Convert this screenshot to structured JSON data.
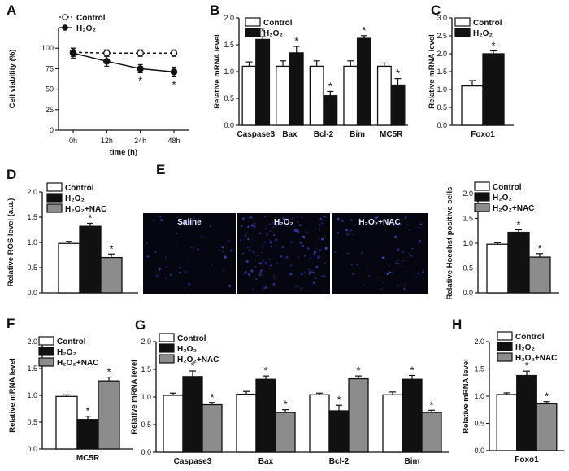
{
  "figure_title": "",
  "chart_data": [
    {
      "panel": "A",
      "type": "line",
      "xlabel": "time (h)",
      "ylabel": "Cell viability (%)",
      "categories": [
        "0h",
        "12h",
        "24h",
        "48h"
      ],
      "ylim": [
        0,
        125
      ],
      "yticks": [
        0,
        25,
        50,
        75,
        100
      ],
      "legend": "top-left",
      "series": [
        {
          "name": "Control",
          "values": [
            95,
            94,
            94,
            94
          ],
          "errors": [
            5,
            4,
            4,
            4
          ],
          "marker": "open-circle",
          "dash": true
        },
        {
          "name": "H₂O₂",
          "values": [
            94,
            84,
            75,
            71
          ],
          "errors": [
            6,
            6,
            5,
            6
          ],
          "marker": "filled-circle",
          "dash": false
        }
      ],
      "significance": [
        "",
        "",
        "*",
        "*"
      ]
    },
    {
      "panel": "B",
      "type": "bar",
      "ylabel": "Relative mRNA  level",
      "categories": [
        "Caspase3",
        "Bax",
        "Bcl-2",
        "Bim",
        "MC5R"
      ],
      "ylim": [
        0,
        2.0
      ],
      "yticks": [
        0.0,
        0.5,
        1.0,
        1.5,
        2.0
      ],
      "legend": "top-left",
      "series": [
        {
          "name": "Control",
          "values": [
            1.1,
            1.1,
            1.1,
            1.1,
            1.1
          ],
          "errors": [
            0.08,
            0.1,
            0.1,
            0.1,
            0.06
          ],
          "color": "#ffffff"
        },
        {
          "name": "H₂O₂",
          "values": [
            1.6,
            1.35,
            0.55,
            1.62,
            0.75
          ],
          "errors": [
            0.05,
            0.12,
            0.08,
            0.05,
            0.12
          ],
          "color": "#111111"
        }
      ],
      "significance": [
        [
          "",
          "*"
        ],
        [
          "",
          "*"
        ],
        [
          "",
          "*"
        ],
        [
          "",
          "*"
        ],
        [
          "",
          "*"
        ]
      ]
    },
    {
      "panel": "C",
      "type": "bar",
      "ylabel": "Relative mRNA  level",
      "categories": [
        "Foxo1"
      ],
      "ylim": [
        0,
        3.0
      ],
      "yticks": [
        0.0,
        0.5,
        1.0,
        1.5,
        2.0,
        2.5,
        3.0
      ],
      "legend": "top-left",
      "series": [
        {
          "name": "Control",
          "values": [
            1.1
          ],
          "errors": [
            0.15
          ],
          "color": "#ffffff"
        },
        {
          "name": "H₂O₂",
          "values": [
            2.0
          ],
          "errors": [
            0.08
          ],
          "color": "#111111"
        }
      ],
      "significance": [
        [
          "",
          "*"
        ]
      ]
    },
    {
      "panel": "D",
      "type": "bar",
      "ylabel": "Relative ROS level (a.u.)",
      "categories": [
        ""
      ],
      "ylim": [
        0,
        2.0
      ],
      "yticks": [
        0.0,
        0.5,
        1.0,
        1.5,
        2.0
      ],
      "legend": "top-right",
      "series": [
        {
          "name": "Control",
          "values": [
            0.98
          ],
          "errors": [
            0.04
          ],
          "color": "#ffffff"
        },
        {
          "name": "H₂O₂",
          "values": [
            1.32
          ],
          "errors": [
            0.06
          ],
          "color": "#111111"
        },
        {
          "name": "H₂O₂+NAC",
          "values": [
            0.7
          ],
          "errors": [
            0.07
          ],
          "color": "#8c8c8c"
        }
      ],
      "significance": [
        [
          "",
          "*",
          "*"
        ]
      ]
    },
    {
      "panel": "E",
      "type": "bar",
      "ylabel": "Relative Hoechst positive cells",
      "categories": [
        ""
      ],
      "ylim": [
        0,
        2.0
      ],
      "yticks": [
        0.0,
        0.5,
        1.0,
        1.5,
        2.0
      ],
      "legend": "top-right",
      "image_labels": [
        "Saline",
        "H₂O₂",
        "H₂O₂+NAC"
      ],
      "series": [
        {
          "name": "Control",
          "values": [
            0.98
          ],
          "errors": [
            0.03
          ],
          "color": "#ffffff"
        },
        {
          "name": "H₂O₂",
          "values": [
            1.22
          ],
          "errors": [
            0.05
          ],
          "color": "#111111"
        },
        {
          "name": "H₂O₂+NAC",
          "values": [
            0.72
          ],
          "errors": [
            0.07
          ],
          "color": "#8c8c8c"
        }
      ],
      "significance": [
        [
          "",
          "*",
          "*"
        ]
      ]
    },
    {
      "panel": "F",
      "type": "bar",
      "ylabel": "Relative mRNA  level",
      "categories": [
        "MC5R"
      ],
      "ylim": [
        0,
        2.0
      ],
      "yticks": [
        0.0,
        0.5,
        1.0,
        1.5,
        2.0
      ],
      "legend": "top-right",
      "series": [
        {
          "name": "Control",
          "values": [
            0.98
          ],
          "errors": [
            0.03
          ],
          "color": "#ffffff"
        },
        {
          "name": "H₂O₂",
          "values": [
            0.55
          ],
          "errors": [
            0.06
          ],
          "color": "#111111"
        },
        {
          "name": "H₂O₂+NAC",
          "values": [
            1.27
          ],
          "errors": [
            0.07
          ],
          "color": "#8c8c8c"
        }
      ],
      "significance": [
        [
          "",
          "*",
          "*"
        ]
      ]
    },
    {
      "panel": "G",
      "type": "bar",
      "ylabel": "Relative mRNA  level",
      "categories": [
        "Caspase3",
        "Bax",
        "Bcl-2",
        "Bim"
      ],
      "ylim": [
        0,
        2.0
      ],
      "yticks": [
        0.0,
        0.5,
        1.0,
        1.5,
        2.0
      ],
      "legend": "top-left",
      "series": [
        {
          "name": "Control",
          "values": [
            1.03,
            1.05,
            1.04,
            1.04
          ],
          "errors": [
            0.04,
            0.05,
            0.03,
            0.05
          ],
          "color": "#ffffff"
        },
        {
          "name": "H₂O₂",
          "values": [
            1.37,
            1.32,
            0.75,
            1.32
          ],
          "errors": [
            0.1,
            0.06,
            0.1,
            0.07
          ],
          "color": "#111111"
        },
        {
          "name": "H₂O₂+NAC",
          "values": [
            0.86,
            0.72,
            1.33,
            0.72
          ],
          "errors": [
            0.04,
            0.05,
            0.05,
            0.04
          ],
          "color": "#8c8c8c"
        }
      ],
      "significance": [
        [
          "",
          "*",
          "*"
        ],
        [
          "",
          "*",
          "*"
        ],
        [
          "",
          "*",
          "*"
        ],
        [
          "",
          "*",
          "*"
        ]
      ]
    },
    {
      "panel": "H",
      "type": "bar",
      "ylabel": "Relative mRNA  level",
      "categories": [
        "Foxo1"
      ],
      "ylim": [
        0,
        2.0
      ],
      "yticks": [
        0.0,
        0.5,
        1.0,
        1.5,
        2.0
      ],
      "legend": "top-right",
      "series": [
        {
          "name": "Control",
          "values": [
            1.03
          ],
          "errors": [
            0.03
          ],
          "color": "#ffffff"
        },
        {
          "name": "H₂O₂",
          "values": [
            1.38
          ],
          "errors": [
            0.08
          ],
          "color": "#111111"
        },
        {
          "name": "H₂O₂+NAC",
          "values": [
            0.86
          ],
          "errors": [
            0.04
          ],
          "color": "#8c8c8c"
        }
      ],
      "significance": [
        [
          "",
          "*",
          "*"
        ]
      ]
    }
  ]
}
